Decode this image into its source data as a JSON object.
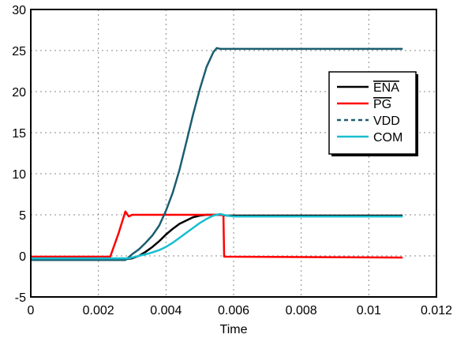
{
  "chart_data": {
    "type": "line",
    "title": "",
    "xlabel": "Time",
    "ylabel": "",
    "xlim": [
      0,
      0.012
    ],
    "ylim": [
      -5,
      30
    ],
    "xticks": [
      0,
      0.002,
      0.004,
      0.006,
      0.008,
      0.01,
      0.012
    ],
    "yticks": [
      -5,
      0,
      5,
      10,
      15,
      20,
      25,
      30
    ],
    "xtick_labels": [
      "0",
      "0.002",
      "0.004",
      "0.006",
      "0.008",
      "0.01",
      "0.012"
    ],
    "ytick_labels": [
      "-5",
      "0",
      "5",
      "10",
      "15",
      "20",
      "25",
      "30"
    ],
    "grid": true,
    "legend_position": "right, upper-middle",
    "series": [
      {
        "name": "ENA",
        "name_overline": true,
        "color": "#000000",
        "dash": "solid",
        "x": [
          0,
          0.0028,
          0.003,
          0.0032,
          0.0034,
          0.0036,
          0.0038,
          0.004,
          0.0042,
          0.0044,
          0.0046,
          0.0048,
          0.005,
          0.0052,
          0.0054,
          0.0056,
          0.0058,
          0.006,
          0.011
        ],
        "y": [
          -0.4,
          -0.4,
          -0.3,
          0.0,
          0.5,
          1.1,
          1.8,
          2.6,
          3.3,
          3.9,
          4.3,
          4.7,
          4.9,
          5.0,
          5.0,
          5.0,
          4.9,
          4.9,
          4.9
        ]
      },
      {
        "name": "PG",
        "name_overline": true,
        "color": "#ff0000",
        "dash": "solid",
        "x": [
          0,
          0.00235,
          0.0026,
          0.0028,
          0.0029,
          0.003,
          0.0031,
          0.0057,
          0.00572,
          0.011
        ],
        "y": [
          -0.1,
          -0.1,
          2.8,
          5.4,
          4.8,
          5.0,
          5.0,
          5.0,
          -0.1,
          -0.2
        ]
      },
      {
        "name": "VDD",
        "name_overline": false,
        "color": "#1b5e70",
        "dash": "dashed",
        "x": [
          0,
          0.0028,
          0.003,
          0.0032,
          0.0034,
          0.0036,
          0.0038,
          0.004,
          0.0042,
          0.0044,
          0.0046,
          0.0048,
          0.005,
          0.0052,
          0.0054,
          0.0055,
          0.0056,
          0.011
        ],
        "y": [
          -0.5,
          -0.5,
          0.2,
          0.8,
          1.6,
          2.5,
          3.7,
          5.5,
          7.7,
          10.5,
          13.8,
          17.2,
          20.3,
          23.0,
          24.8,
          25.3,
          25.2,
          25.2
        ]
      },
      {
        "name": "COM",
        "name_overline": false,
        "color": "#17becf",
        "dash": "solid",
        "x": [
          0,
          0.0029,
          0.0032,
          0.0035,
          0.0038,
          0.004,
          0.0042,
          0.0044,
          0.0046,
          0.0048,
          0.005,
          0.0052,
          0.0054,
          0.0056,
          0.0058,
          0.006,
          0.011
        ],
        "y": [
          -0.3,
          -0.3,
          0.0,
          0.3,
          0.7,
          1.1,
          1.6,
          2.2,
          2.8,
          3.4,
          4.0,
          4.5,
          4.9,
          5.1,
          4.9,
          4.8,
          4.8
        ]
      }
    ]
  }
}
